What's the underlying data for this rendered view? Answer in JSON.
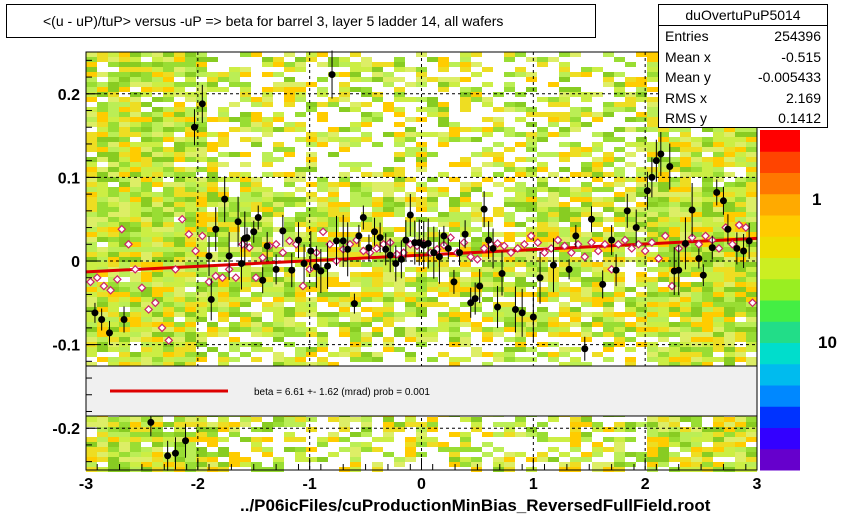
{
  "title": "<(u - uP)/tuP>  versus  -uP => beta for barrel 3, layer 5 ladder 14, all wafers",
  "xlabel": "../P06icFiles/cuProductionMinBias_ReversedFullField.root",
  "stats": {
    "name": "duOvertuPuP5014",
    "rows": [
      {
        "label": "Entries",
        "value": "254396"
      },
      {
        "label": "Mean x",
        "value": "-0.515"
      },
      {
        "label": "Mean y",
        "value": "-0.005433"
      },
      {
        "label": "RMS x",
        "value": "2.169"
      },
      {
        "label": "RMS y",
        "value": "0.1412"
      }
    ]
  },
  "fit_legend": "beta =    6.61 +-  1.62 (mrad) prob = 0.001",
  "colorbar_labels": [
    "1",
    "10"
  ],
  "colors": {
    "fit_line": "#dd0000",
    "points_black": "#000000",
    "points_open": "#cc2266"
  },
  "chart_data": {
    "type": "scatter",
    "xlim": [
      -3,
      3
    ],
    "ylim": [
      -0.25,
      0.25
    ],
    "x_ticks": [
      "-3",
      "-2",
      "-1",
      "0",
      "1",
      "2",
      "3"
    ],
    "y_ticks": [
      "-0.2",
      "-0.1",
      "0",
      "0.1",
      "0.2"
    ],
    "grid": true,
    "fit_line": {
      "x": [
        -3,
        3
      ],
      "y": [
        -0.013,
        0.027
      ]
    },
    "series": [
      {
        "marker": "filled-circle",
        "x": [
          -2.92,
          -2.86,
          -2.79,
          -2.66,
          -2.42,
          -2.27,
          -2.2,
          -2.11,
          -2.03,
          -1.96,
          -1.9,
          -1.88,
          -1.84,
          -1.76,
          -1.72,
          -1.64,
          -1.61,
          -1.58,
          -1.56,
          -1.5,
          -1.46,
          -1.42,
          -1.38,
          -1.3,
          -1.24,
          -1.16,
          -1.1,
          -1.05,
          -0.99,
          -0.94,
          -0.9,
          -0.84,
          -0.8,
          -0.76,
          -0.7,
          -0.66,
          -0.6,
          -0.56,
          -0.52,
          -0.47,
          -0.42,
          -0.37,
          -0.32,
          -0.28,
          -0.23,
          -0.18,
          -0.14,
          -0.1,
          -0.06,
          -0.02,
          0.02,
          0.06,
          0.11,
          0.16,
          0.2,
          0.24,
          0.29,
          0.34,
          0.39,
          0.44,
          0.48,
          0.52,
          0.56,
          0.6,
          0.64,
          0.68,
          0.72,
          0.84,
          0.9,
          1.0,
          1.06,
          1.18,
          1.32,
          1.38,
          1.46,
          1.52,
          1.62,
          1.7,
          1.74,
          1.84,
          1.92,
          2.02,
          2.06,
          2.1,
          2.14,
          2.22,
          2.26,
          2.3,
          2.36,
          2.42,
          2.48,
          2.52,
          2.6,
          2.64,
          2.7,
          2.74,
          2.82,
          2.88,
          2.93
        ],
        "y": [
          -0.062,
          -0.07,
          -0.086,
          -0.07,
          -0.193,
          -0.233,
          -0.23,
          -0.215,
          0.16,
          0.188,
          0.006,
          -0.046,
          0.038,
          0.074,
          0.006,
          0.047,
          -0.003,
          0.027,
          0.028,
          0.035,
          0.052,
          -0.023,
          0.018,
          -0.01,
          0.036,
          -0.011,
          0.025,
          -0.003,
          0.012,
          -0.007,
          -0.012,
          -0.006,
          0.223,
          0.024,
          0.024,
          0.014,
          -0.051,
          0.03,
          0.052,
          0.016,
          0.035,
          0.028,
          0.014,
          0.007,
          -0.003,
          0.002,
          0.025,
          0.055,
          0.022,
          0.022,
          0.019,
          0.021,
          0.01,
          0.005,
          0.03,
          0.015,
          -0.025,
          0.01,
          0.032,
          -0.05,
          -0.045,
          -0.03,
          0.062,
          0.025,
          0.015,
          -0.055,
          -0.015,
          -0.058,
          -0.062,
          -0.067,
          -0.02,
          -0.005,
          -0.01,
          0.03,
          -0.105,
          0.05,
          -0.028,
          0.025,
          -0.011,
          0.06,
          0.04,
          0.084,
          0.1,
          0.12,
          0.128,
          0.113,
          -0.012,
          -0.011,
          0.021,
          0.061,
          0.003,
          -0.017,
          0.016,
          0.082,
          0.072,
          0.038,
          0.015,
          0.012,
          0.024
        ]
      },
      {
        "marker": "open-diamond",
        "x": [
          -2.96,
          -2.9,
          -2.84,
          -2.78,
          -2.72,
          -2.68,
          -2.62,
          -2.56,
          -2.5,
          -2.44,
          -2.38,
          -2.32,
          -2.26,
          -2.2,
          -2.14,
          -2.08,
          -2.02,
          -1.96,
          -1.9,
          -1.84,
          -1.78,
          -1.72,
          -1.66,
          -1.6,
          -1.54,
          -1.48,
          -1.42,
          -1.36,
          -1.3,
          -1.24,
          -1.18,
          -1.12,
          -1.06,
          -1.0,
          -0.94,
          -0.88,
          -0.82,
          -0.76,
          -0.7,
          -0.64,
          -0.58,
          -0.52,
          -0.46,
          -0.4,
          -0.34,
          -0.28,
          -0.22,
          -0.16,
          -0.1,
          -0.04,
          0.02,
          0.08,
          0.14,
          0.2,
          0.26,
          0.32,
          0.38,
          0.44,
          0.5,
          0.56,
          0.62,
          0.68,
          0.74,
          0.8,
          0.86,
          0.92,
          0.98,
          1.04,
          1.1,
          1.16,
          1.22,
          1.28,
          1.34,
          1.4,
          1.46,
          1.52,
          1.58,
          1.64,
          1.7,
          1.76,
          1.82,
          1.88,
          1.94,
          2.0,
          2.06,
          2.12,
          2.18,
          2.24,
          2.3,
          2.36,
          2.42,
          2.48,
          2.54,
          2.6,
          2.66,
          2.72,
          2.78,
          2.84,
          2.9,
          2.96
        ],
        "y": [
          -0.025,
          -0.02,
          -0.03,
          -0.035,
          -0.022,
          0.038,
          0.02,
          -0.01,
          -0.032,
          -0.058,
          -0.05,
          -0.08,
          -0.095,
          -0.01,
          0.05,
          0.032,
          0.012,
          0.03,
          -0.025,
          -0.018,
          -0.02,
          -0.01,
          -0.02,
          0.02,
          0.016,
          -0.02,
          0.004,
          0.018,
          0.02,
          0.01,
          0.024,
          0.02,
          -0.03,
          -0.01,
          0.01,
          0.035,
          0.02,
          0.0,
          0.014,
          0.02,
          0.025,
          0.012,
          0.01,
          0.015,
          0.02,
          0.022,
          0.008,
          0.01,
          0.02,
          0.018,
          0.021,
          0.01,
          0.014,
          0.019,
          0.028,
          0.01,
          0.022,
          0.005,
          0.002,
          0.015,
          0.02,
          0.021,
          0.018,
          0.01,
          0.015,
          0.02,
          0.03,
          0.022,
          0.01,
          0.015,
          0.025,
          0.018,
          0.01,
          0.02,
          0.005,
          0.022,
          0.012,
          0.02,
          -0.01,
          0.02,
          0.025,
          0.015,
          0.02,
          0.012,
          0.022,
          0.003,
          0.03,
          -0.03,
          0.015,
          0.02,
          0.028,
          0.02,
          0.03,
          0.025,
          0.015,
          0.04,
          0.02,
          0.043,
          0.04,
          -0.05
        ]
      }
    ]
  }
}
